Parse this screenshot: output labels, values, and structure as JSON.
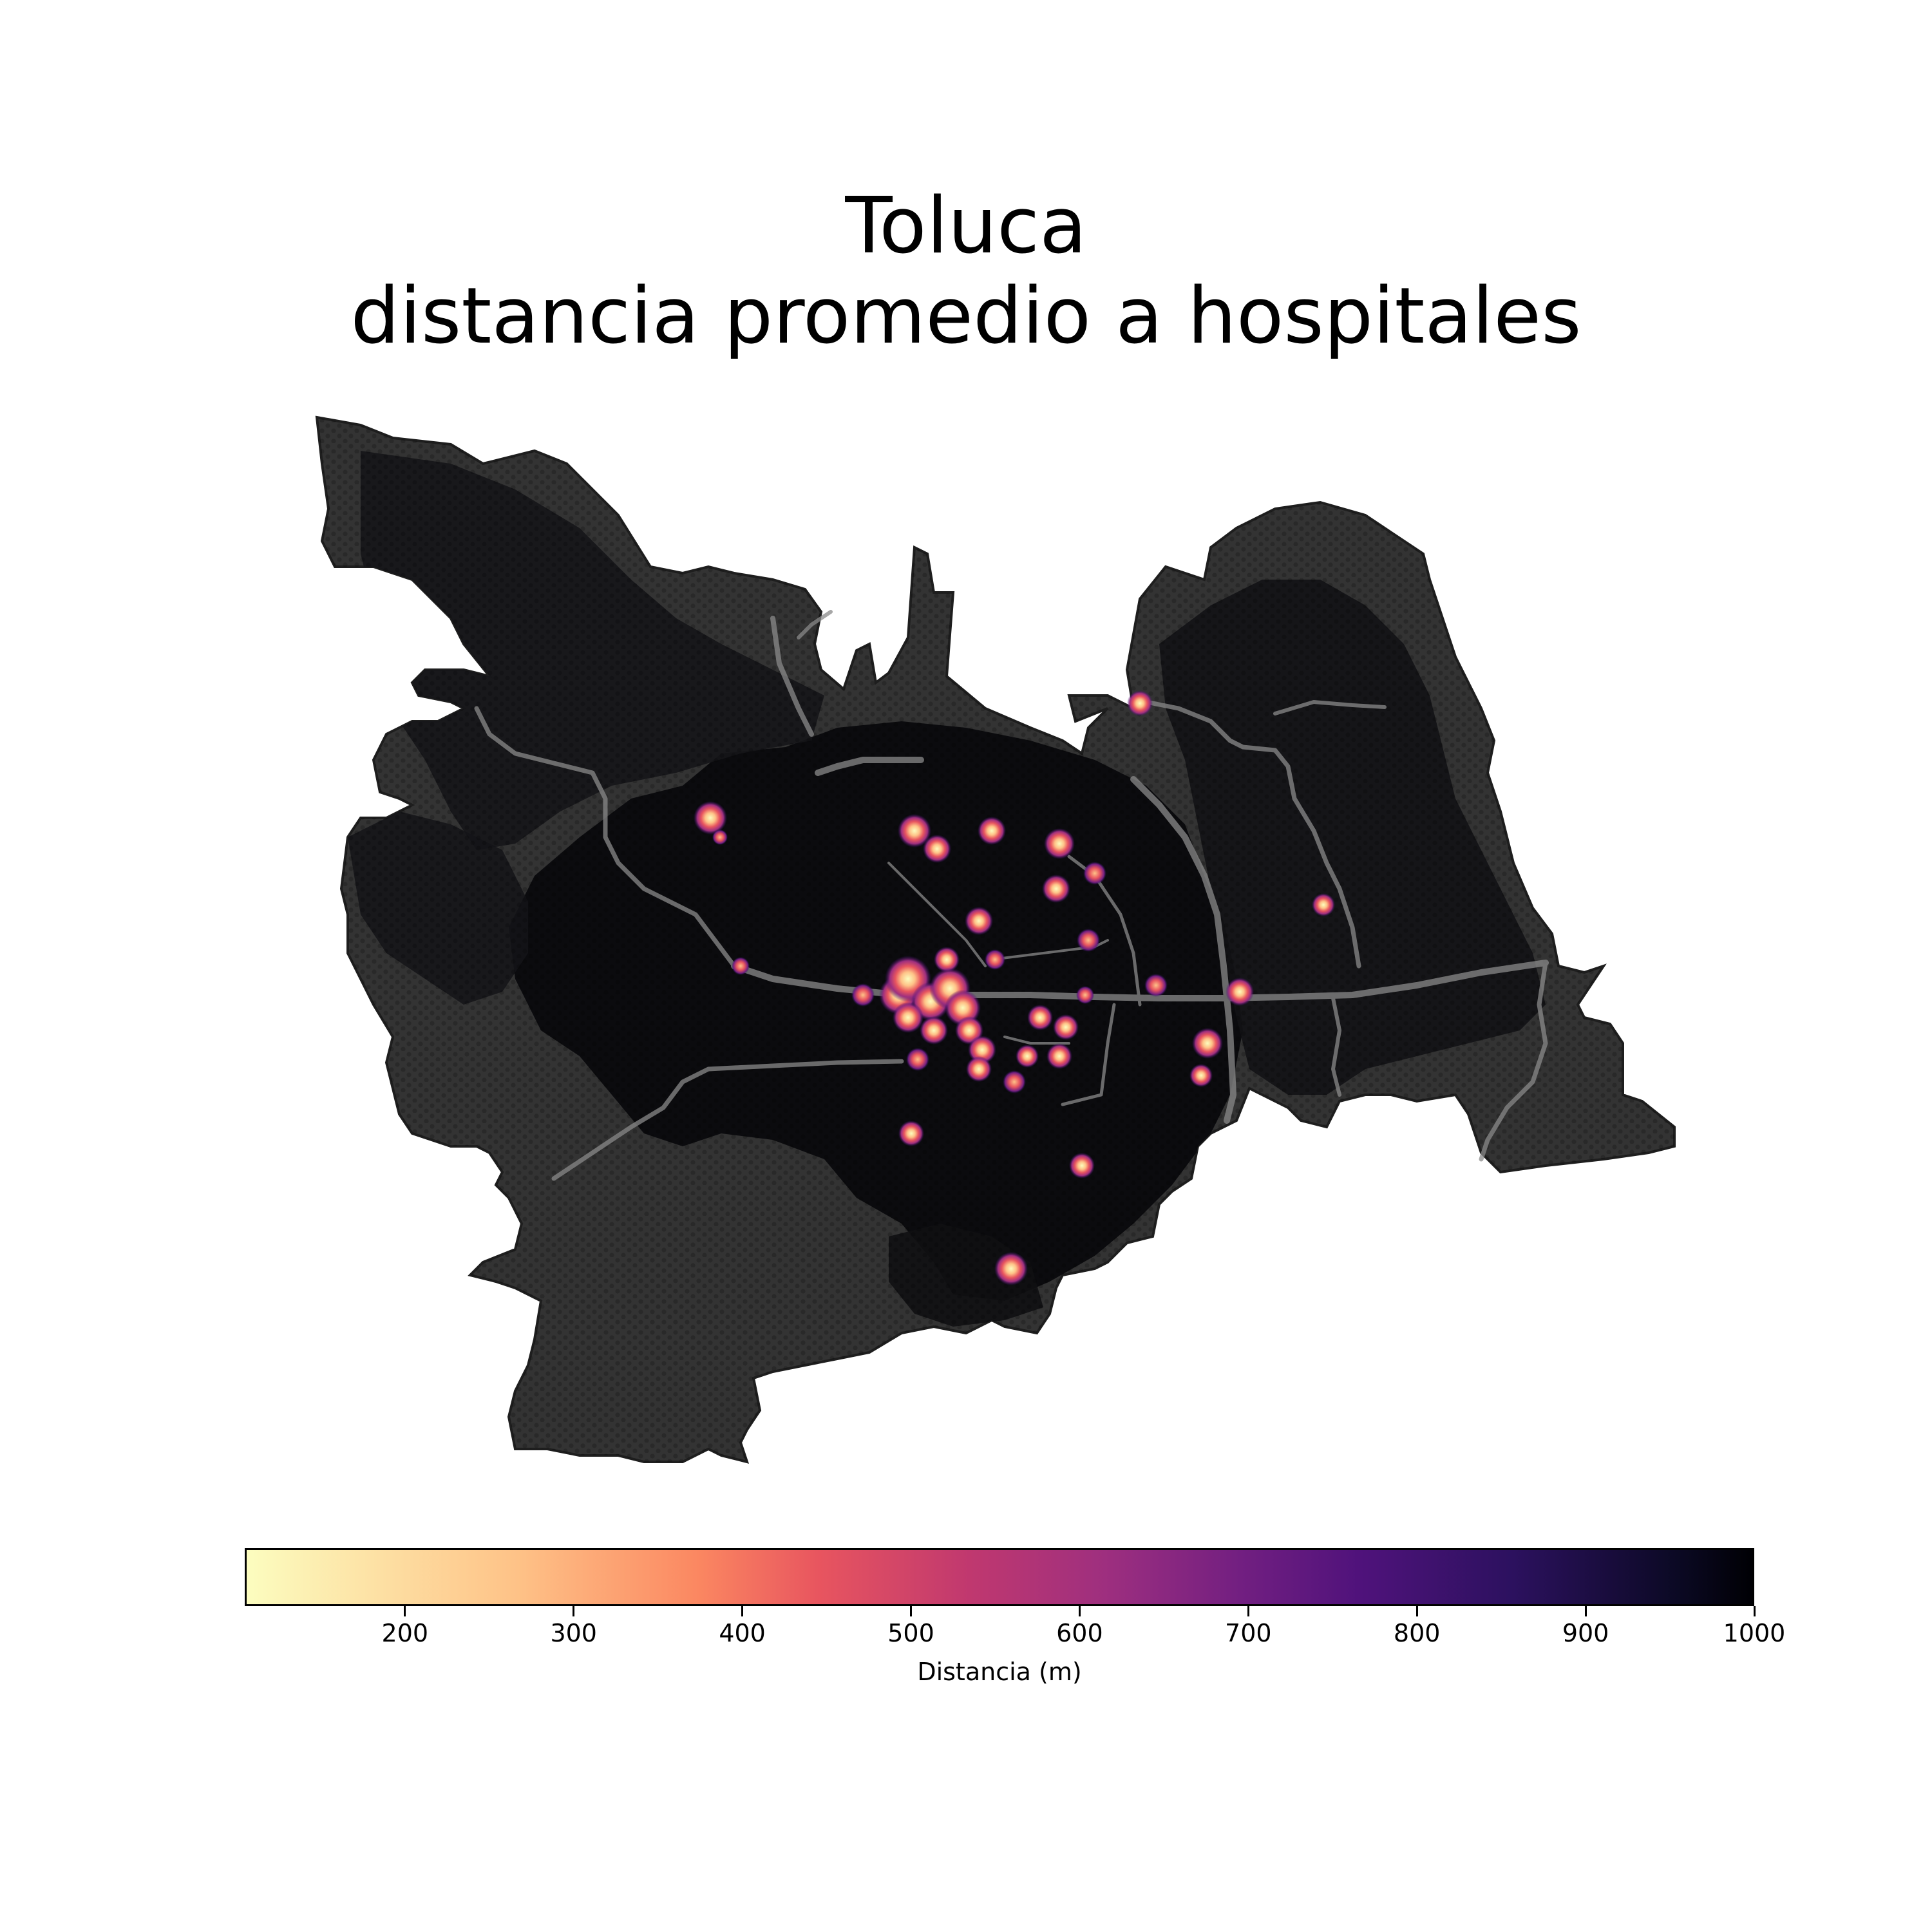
{
  "title_line1": "Toluca",
  "title_line2": "distancia promedio a hospitales",
  "colors": {
    "territory": "#333333",
    "territory_edge": "#1e1e1e",
    "urban_dark": "#0b0b0e",
    "road": "#8a8a8a",
    "hotspot_core": "#fcfdbf",
    "hotspot_mid": "#fb8761",
    "hotspot_outer": "#b73779",
    "hotspot_rim": "#51127c"
  },
  "colorbar": {
    "label": "Distancia (m)",
    "colormap": "magma_r",
    "range": [
      105,
      1000
    ],
    "ticks": [
      "200",
      "300",
      "400",
      "500",
      "600",
      "700",
      "800",
      "900",
      "1000"
    ]
  }
}
